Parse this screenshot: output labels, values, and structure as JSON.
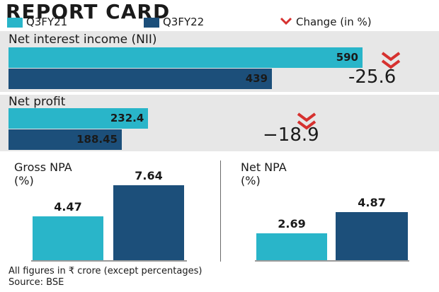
{
  "title": "REPORT CARD",
  "legend": {
    "q3fy21": "Q3FY21",
    "q3fy22": "Q3FY22",
    "change": "Change (in %)"
  },
  "colors": {
    "q3fy21": "#29b5c9",
    "q3fy22": "#1c4f7a",
    "change_icon": "#d6312f",
    "panel": "#e7e7e7"
  },
  "chart_data": [
    {
      "type": "bar",
      "orientation": "horizontal",
      "title": "Net interest income (NII)",
      "series": [
        {
          "name": "Q3FY21",
          "values": [
            590
          ]
        },
        {
          "name": "Q3FY22",
          "values": [
            439
          ]
        }
      ],
      "value_labels": [
        "590",
        "439"
      ],
      "change": "-25.6"
    },
    {
      "type": "bar",
      "orientation": "horizontal",
      "title": "Net profit",
      "series": [
        {
          "name": "Q3FY21",
          "values": [
            232.4
          ]
        },
        {
          "name": "Q3FY22",
          "values": [
            188.45
          ]
        }
      ],
      "value_labels": [
        "232.4",
        "188.45"
      ],
      "change": "−18.9"
    },
    {
      "type": "bar",
      "orientation": "vertical",
      "title_line1": "Gross NPA",
      "title_line2": "(%)",
      "series": [
        {
          "name": "Q3FY21",
          "values": [
            4.47
          ]
        },
        {
          "name": "Q3FY22",
          "values": [
            7.64
          ]
        }
      ],
      "value_labels": [
        "4.47",
        "7.64"
      ]
    },
    {
      "type": "bar",
      "orientation": "vertical",
      "title_line1": "Net NPA",
      "title_line2": "(%)",
      "series": [
        {
          "name": "Q3FY21",
          "values": [
            2.69
          ]
        },
        {
          "name": "Q3FY22",
          "values": [
            4.87
          ]
        }
      ],
      "value_labels": [
        "2.69",
        "4.87"
      ]
    }
  ],
  "footer": {
    "note": "All figures in ₹ crore (except percentages)",
    "source": "Source: BSE"
  }
}
